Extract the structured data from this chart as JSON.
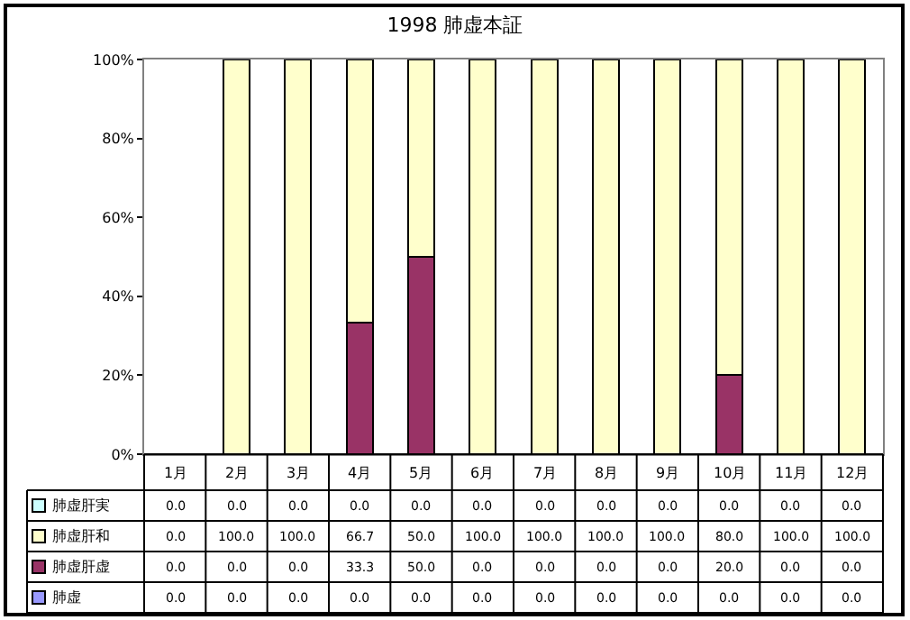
{
  "chart_data": {
    "type": "bar",
    "title": "1998 肺虚本証",
    "stacked": true,
    "legend": "bottom left",
    "categories": [
      "1月",
      "2月",
      "3月",
      "4月",
      "5月",
      "6月",
      "7月",
      "8月",
      "9月",
      "10月",
      "11月",
      "12月"
    ],
    "ylim": [
      0,
      100
    ],
    "yticks": [
      {
        "value": 0,
        "label": "0%"
      },
      {
        "value": 20,
        "label": "20%"
      },
      {
        "value": 40,
        "label": "40%"
      },
      {
        "value": 60,
        "label": "60%"
      },
      {
        "value": 80,
        "label": "80%"
      },
      {
        "value": 100,
        "label": "100%"
      }
    ],
    "series": [
      {
        "name": "肺虚",
        "color": "#9999ff",
        "values": [
          0,
          0,
          0,
          0,
          0,
          0,
          0,
          0,
          0,
          0,
          0,
          0
        ],
        "value_labels": [
          "0.0",
          "0.0",
          "0.0",
          "0.0",
          "0.0",
          "0.0",
          "0.0",
          "0.0",
          "0.0",
          "0.0",
          "0.0",
          "0.0"
        ]
      },
      {
        "name": "肺虚肝虚",
        "color": "#993366",
        "values": [
          0,
          0,
          0,
          33.3,
          50,
          0,
          0,
          0,
          0,
          20,
          0,
          0
        ],
        "value_labels": [
          "0.0",
          "0.0",
          "0.0",
          "33.3",
          "50.0",
          "0.0",
          "0.0",
          "0.0",
          "0.0",
          "20.0",
          "0.0",
          "0.0"
        ]
      },
      {
        "name": "肺虚肝和",
        "color": "#ffffcc",
        "values": [
          0,
          100,
          100,
          66.7,
          50,
          100,
          100,
          100,
          100,
          80,
          100,
          100
        ],
        "value_labels": [
          "0.0",
          "100.0",
          "100.0",
          "66.7",
          "50.0",
          "100.0",
          "100.0",
          "100.0",
          "100.0",
          "80.0",
          "100.0",
          "100.0"
        ]
      },
      {
        "name": "肺虚肝実",
        "color": "#ccffff",
        "values": [
          0,
          0,
          0,
          0,
          0,
          0,
          0,
          0,
          0,
          0,
          0,
          0
        ],
        "value_labels": [
          "0.0",
          "0.0",
          "0.0",
          "0.0",
          "0.0",
          "0.0",
          "0.0",
          "0.0",
          "0.0",
          "0.0",
          "0.0",
          "0.0"
        ]
      }
    ]
  }
}
